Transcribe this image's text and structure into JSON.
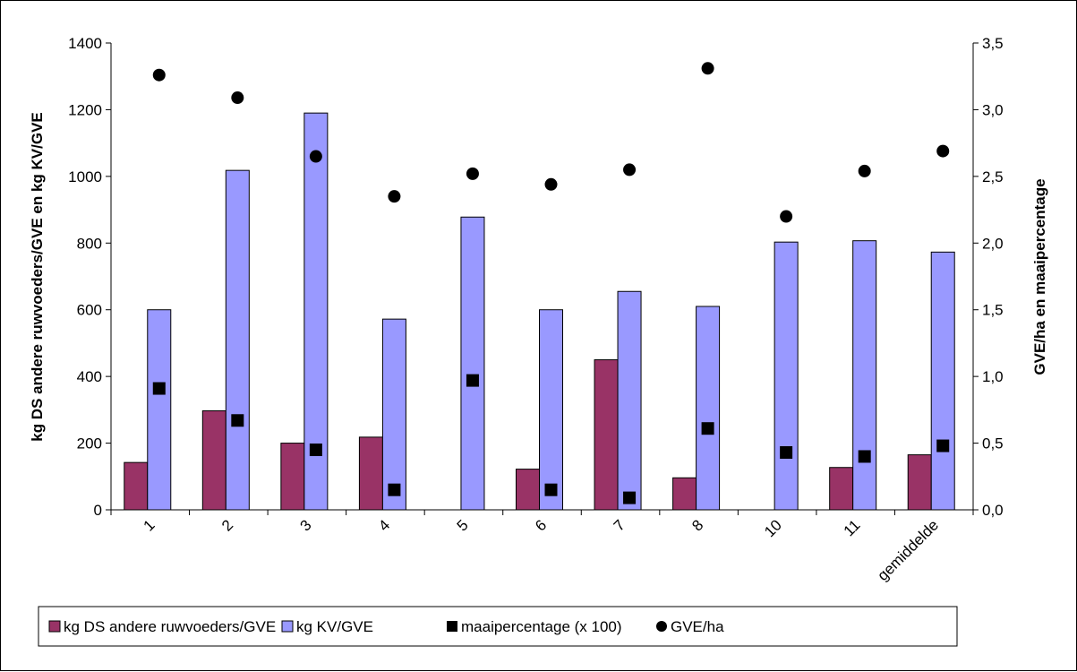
{
  "chart_data": {
    "type": "bar",
    "categories": [
      "1",
      "2",
      "3",
      "4",
      "5",
      "6",
      "7",
      "8",
      "10",
      "11",
      "gemiddelde"
    ],
    "series": [
      {
        "name": "kg DS andere ruwvoeders/GVE",
        "kind": "bar",
        "axis": "left",
        "color": "#993366",
        "values": [
          142,
          297,
          200,
          218,
          0,
          122,
          450,
          96,
          0,
          127,
          165
        ]
      },
      {
        "name": "kg KV/GVE",
        "kind": "bar",
        "axis": "left",
        "color": "#9999ff",
        "values": [
          600,
          1018,
          1190,
          572,
          878,
          600,
          655,
          610,
          803,
          807,
          773
        ]
      },
      {
        "name": "maaipercentage (x 100)",
        "kind": "square-marker",
        "axis": "right",
        "color": "#000000",
        "values": [
          0.91,
          0.67,
          0.45,
          0.15,
          0.97,
          0.15,
          0.09,
          0.61,
          0.43,
          0.4,
          0.48
        ]
      },
      {
        "name": "GVE/ha",
        "kind": "circle-marker",
        "axis": "right",
        "color": "#000000",
        "values": [
          3.26,
          3.09,
          2.65,
          2.35,
          2.52,
          2.44,
          2.55,
          3.31,
          2.2,
          2.54,
          2.69
        ]
      }
    ],
    "ylabel": "kg DS andere ruwvoeders/GVE en kg KV/GVE",
    "y2label": "GVE/ha en maaipercentage",
    "ylim": [
      0,
      1400
    ],
    "y2lim": [
      0,
      3.5
    ],
    "yticks": [
      "0",
      "200",
      "400",
      "600",
      "800",
      "1000",
      "1200",
      "1400"
    ],
    "y2ticks": [
      "0,0",
      "0,5",
      "1,0",
      "1,5",
      "2,0",
      "2,5",
      "3,0",
      "3,5"
    ],
    "grid": false,
    "legend_position": "bottom"
  }
}
